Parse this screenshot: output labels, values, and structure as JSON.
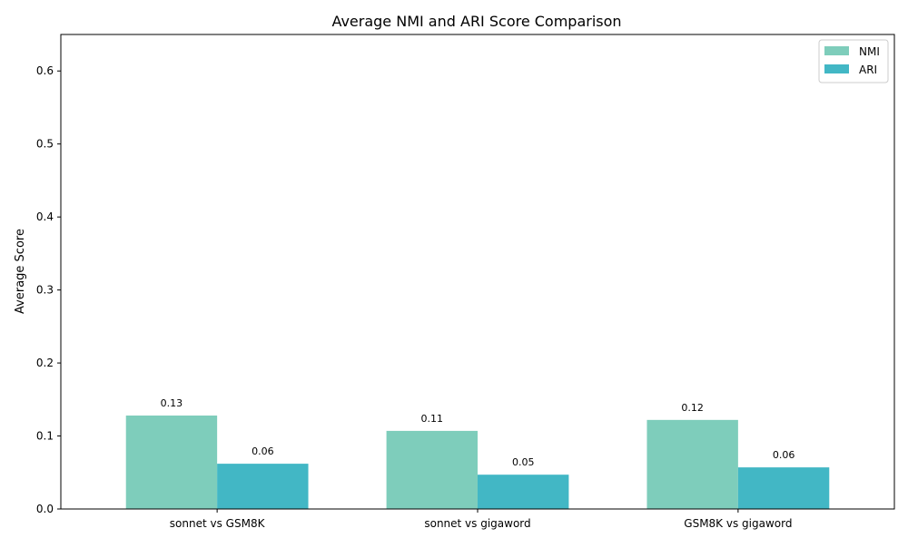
{
  "chart_data": {
    "type": "bar",
    "title": "Average NMI and ARI Score Comparison",
    "xlabel": "",
    "ylabel": "Average Score",
    "categories": [
      "sonnet vs GSM8K",
      "sonnet vs gigaword",
      "GSM8K vs gigaword"
    ],
    "series": [
      {
        "name": "NMI",
        "color": "#7ECDBB",
        "values": [
          0.128,
          0.107,
          0.122
        ],
        "labels": [
          "0.13",
          "0.11",
          "0.12"
        ]
      },
      {
        "name": "ARI",
        "color": "#42B7C5",
        "values": [
          0.062,
          0.047,
          0.057
        ],
        "labels": [
          "0.06",
          "0.05",
          "0.06"
        ]
      }
    ],
    "ylim": [
      0,
      0.65
    ],
    "yticks": [
      0.0,
      0.1,
      0.2,
      0.3,
      0.4,
      0.5,
      0.6
    ],
    "ytick_labels": [
      "0.0",
      "0.1",
      "0.2",
      "0.3",
      "0.4",
      "0.5",
      "0.6"
    ],
    "legend_position": "top-right",
    "grid": false
  }
}
